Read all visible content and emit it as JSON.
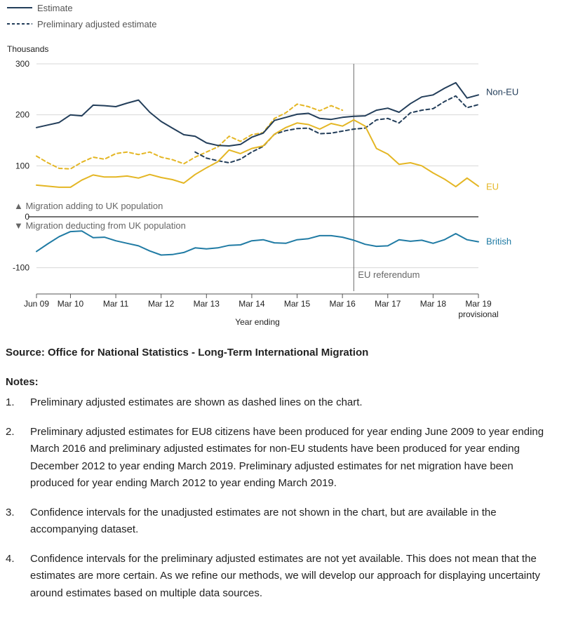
{
  "legend": {
    "estimate": "Estimate",
    "preliminary": "Preliminary adjusted estimate"
  },
  "colors": {
    "non_eu": "#233e5a",
    "eu": "#e4b624",
    "british": "#207ba4",
    "grid": "#d7d7d7",
    "axis": "#555555",
    "zero_line": "#444444",
    "referendum_line": "#6a6a6a"
  },
  "chart_data": {
    "type": "line",
    "ylabel": "Thousands",
    "xlabel": "Year ending",
    "ylim": [
      -150,
      300
    ],
    "yticks": [
      300,
      200,
      100,
      0,
      -100
    ],
    "xlim": [
      0,
      39
    ],
    "x_tick_labels": [
      {
        "x": 0,
        "label": "Jun 09"
      },
      {
        "x": 3,
        "label": "Mar 10"
      },
      {
        "x": 7,
        "label": "Mar 11"
      },
      {
        "x": 11,
        "label": "Mar 12"
      },
      {
        "x": 15,
        "label": "Mar 13"
      },
      {
        "x": 19,
        "label": "Mar 14"
      },
      {
        "x": 23,
        "label": "Mar 15"
      },
      {
        "x": 27,
        "label": "Mar 16"
      },
      {
        "x": 31,
        "label": "Mar 17"
      },
      {
        "x": 35,
        "label": "Mar 18"
      },
      {
        "x": 39,
        "label": "Mar 19",
        "sub": "provisional"
      }
    ],
    "x_note": "x values are quarters counted from year ending Jun 09",
    "direction_labels": {
      "up": "Migration adding to UK population",
      "down": "Migration deducting from UK population"
    },
    "annotations": [
      {
        "x": 28,
        "label": "EU referendum"
      }
    ],
    "grid": true,
    "legend_position": "top-left",
    "series": [
      {
        "name": "Non-EU",
        "key": "non_eu",
        "style": "solid",
        "values": [
          175,
          180,
          185,
          200,
          198,
          219,
          218,
          216,
          223,
          229,
          205,
          187,
          174,
          161,
          158,
          145,
          140,
          139,
          142,
          156,
          164,
          189,
          195,
          201,
          203,
          193,
          191,
          195,
          197,
          198,
          209,
          213,
          205,
          222,
          235,
          239,
          252,
          263,
          233,
          239
        ]
      },
      {
        "name": "EU",
        "key": "eu",
        "style": "solid",
        "values": [
          62,
          60,
          58,
          58,
          72,
          82,
          78,
          78,
          80,
          76,
          83,
          77,
          73,
          66,
          83,
          96,
          108,
          131,
          124,
          134,
          139,
          162,
          175,
          184,
          181,
          172,
          183,
          178,
          190,
          178,
          134,
          123,
          103,
          106,
          100,
          86,
          74,
          59,
          76,
          60
        ]
      },
      {
        "name": "British",
        "key": "british",
        "style": "solid",
        "values": [
          -68,
          -53,
          -39,
          -29,
          -28,
          -41,
          -40,
          -47,
          -52,
          -57,
          -67,
          -75,
          -74,
          -70,
          -61,
          -63,
          -61,
          -56,
          -55,
          -47,
          -45,
          -51,
          -52,
          -45,
          -43,
          -37,
          -37,
          -40,
          -46,
          -54,
          -58,
          -57,
          -45,
          -48,
          -46,
          -52,
          -45,
          -33,
          -45,
          -49
        ]
      },
      {
        "name": "Non-EU (preliminary adjusted)",
        "key": "non_eu",
        "style": "dashed",
        "x_start": 14,
        "values": [
          127,
          115,
          110,
          106,
          113,
          127,
          138,
          162,
          169,
          173,
          174,
          163,
          164,
          168,
          172,
          174,
          190,
          193,
          184,
          204,
          209,
          212,
          226,
          237,
          214,
          220
        ]
      },
      {
        "name": "EU (preliminary adjusted)",
        "key": "eu",
        "style": "dashed",
        "x_start": 0,
        "values": [
          119,
          106,
          95,
          94,
          107,
          117,
          113,
          124,
          127,
          122,
          127,
          117,
          112,
          104,
          117,
          127,
          137,
          158,
          148,
          161,
          165,
          193,
          204,
          221,
          216,
          208,
          218,
          209
        ]
      }
    ]
  },
  "source": "Source: Office for National Statistics - Long-Term International Migration",
  "notes_title": "Notes:",
  "notes": [
    {
      "num": "1.",
      "text": "Preliminary adjusted estimates are shown as dashed lines on the chart."
    },
    {
      "num": "2.",
      "text": "Preliminary adjusted estimates for EU8 citizens have been produced for year ending June 2009 to year ending March 2016 and preliminary adjusted estimates for non-EU students have been produced for year ending December 2012 to year ending March 2019. Preliminary adjusted estimates for net migration have been produced for year ending March 2012 to year ending March 2019."
    },
    {
      "num": "3.",
      "text": "Confidence intervals for the unadjusted estimates are not shown in the chart, but are available in the accompanying dataset."
    },
    {
      "num": "4.",
      "text": "Confidence intervals for the preliminary adjusted estimates are not yet available. This does not mean that the estimates are more certain. As we refine our methods, we will develop our approach for displaying uncertainty around estimates based on multiple data sources."
    }
  ]
}
